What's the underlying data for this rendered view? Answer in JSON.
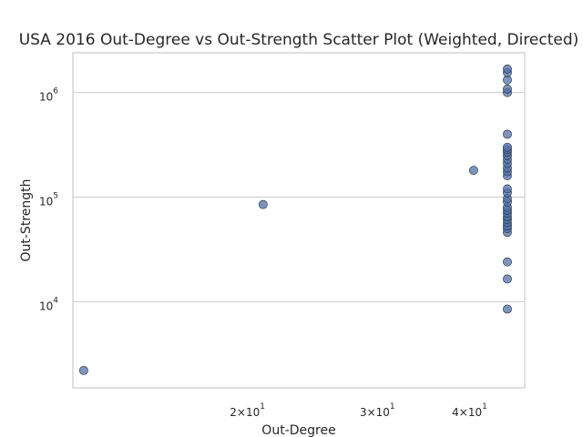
{
  "chart_data": {
    "type": "scatter",
    "title": "USA 2016 Out-Degree vs Out-Strength Scatter Plot (Weighted, Directed)",
    "xlabel": "Out-Degree",
    "ylabel": "Out-Strength",
    "xscale": "log",
    "yscale": "log",
    "xlim": [
      11.6,
      47.5
    ],
    "ylim": [
      1500,
      2400000
    ],
    "grid": "y-major",
    "marker_color": "#4c72b0",
    "marker_edge": "#262626",
    "x_ticks": [
      {
        "value": 20,
        "mant": "2",
        "exp": "1"
      },
      {
        "value": 30,
        "mant": "3",
        "exp": "1"
      },
      {
        "value": 40,
        "mant": "4",
        "exp": "1"
      }
    ],
    "y_ticks": [
      {
        "value": 10000,
        "base": "10",
        "exp": "4"
      },
      {
        "value": 100000,
        "base": "10",
        "exp": "5"
      },
      {
        "value": 1000000,
        "base": "10",
        "exp": "6"
      }
    ],
    "points": [
      {
        "x": 12.0,
        "y": 2200
      },
      {
        "x": 21.0,
        "y": 85000
      },
      {
        "x": 40.5,
        "y": 180000
      },
      {
        "x": 45,
        "y": 8500
      },
      {
        "x": 45,
        "y": 16500
      },
      {
        "x": 45,
        "y": 24000
      },
      {
        "x": 45,
        "y": 46000
      },
      {
        "x": 45,
        "y": 50000
      },
      {
        "x": 45,
        "y": 53000
      },
      {
        "x": 45,
        "y": 57000
      },
      {
        "x": 45,
        "y": 61000
      },
      {
        "x": 45,
        "y": 65000
      },
      {
        "x": 45,
        "y": 70000
      },
      {
        "x": 45,
        "y": 75000
      },
      {
        "x": 45,
        "y": 80000
      },
      {
        "x": 45,
        "y": 90000
      },
      {
        "x": 45,
        "y": 97000
      },
      {
        "x": 45,
        "y": 110000
      },
      {
        "x": 45,
        "y": 120000
      },
      {
        "x": 45,
        "y": 160000
      },
      {
        "x": 45,
        "y": 175000
      },
      {
        "x": 45,
        "y": 190000
      },
      {
        "x": 45,
        "y": 210000
      },
      {
        "x": 45,
        "y": 230000
      },
      {
        "x": 45,
        "y": 250000
      },
      {
        "x": 45,
        "y": 270000
      },
      {
        "x": 45,
        "y": 285000
      },
      {
        "x": 45,
        "y": 300000
      },
      {
        "x": 45,
        "y": 400000
      },
      {
        "x": 45,
        "y": 1000000
      },
      {
        "x": 45,
        "y": 1080000
      },
      {
        "x": 45,
        "y": 1320000
      },
      {
        "x": 45,
        "y": 1550000
      },
      {
        "x": 45,
        "y": 1680000
      }
    ]
  }
}
